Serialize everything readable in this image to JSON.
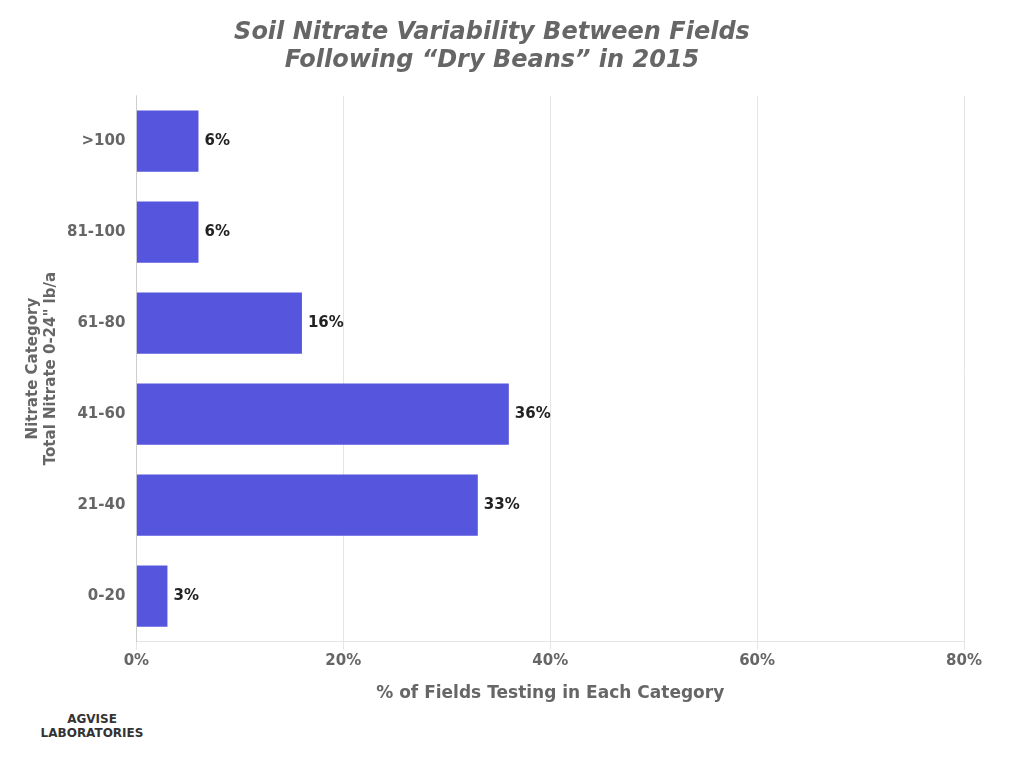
{
  "chart_data": {
    "type": "bar",
    "orientation": "horizontal",
    "title": [
      "Soil Nitrate Variability Between Fields",
      "Following “Dry Beans” in 2015"
    ],
    "xlabel": "% of Fields Testing in Each Category",
    "ylabel": [
      "Nitrate Category",
      "Total Nitrate 0-24\" lb/a"
    ],
    "categories": [
      ">100",
      "81-100",
      "61-80",
      "41-60",
      "21-40",
      "0-20"
    ],
    "values": [
      6,
      6,
      16,
      36,
      33,
      3
    ],
    "value_labels": [
      "6%",
      "6%",
      "16%",
      "36%",
      "33%",
      "3%"
    ],
    "color": "#5555dd",
    "xlim": [
      0,
      80
    ],
    "xticks": [
      {
        "value": 0,
        "label": "0%"
      },
      {
        "value": 20,
        "label": "20%"
      },
      {
        "value": 40,
        "label": "40%"
      },
      {
        "value": 60,
        "label": "60%"
      },
      {
        "value": 80,
        "label": "80%"
      }
    ],
    "grid": true,
    "data_labels": true,
    "annotations": [
      [
        "AGVISE",
        "LABORATORIES"
      ]
    ]
  }
}
